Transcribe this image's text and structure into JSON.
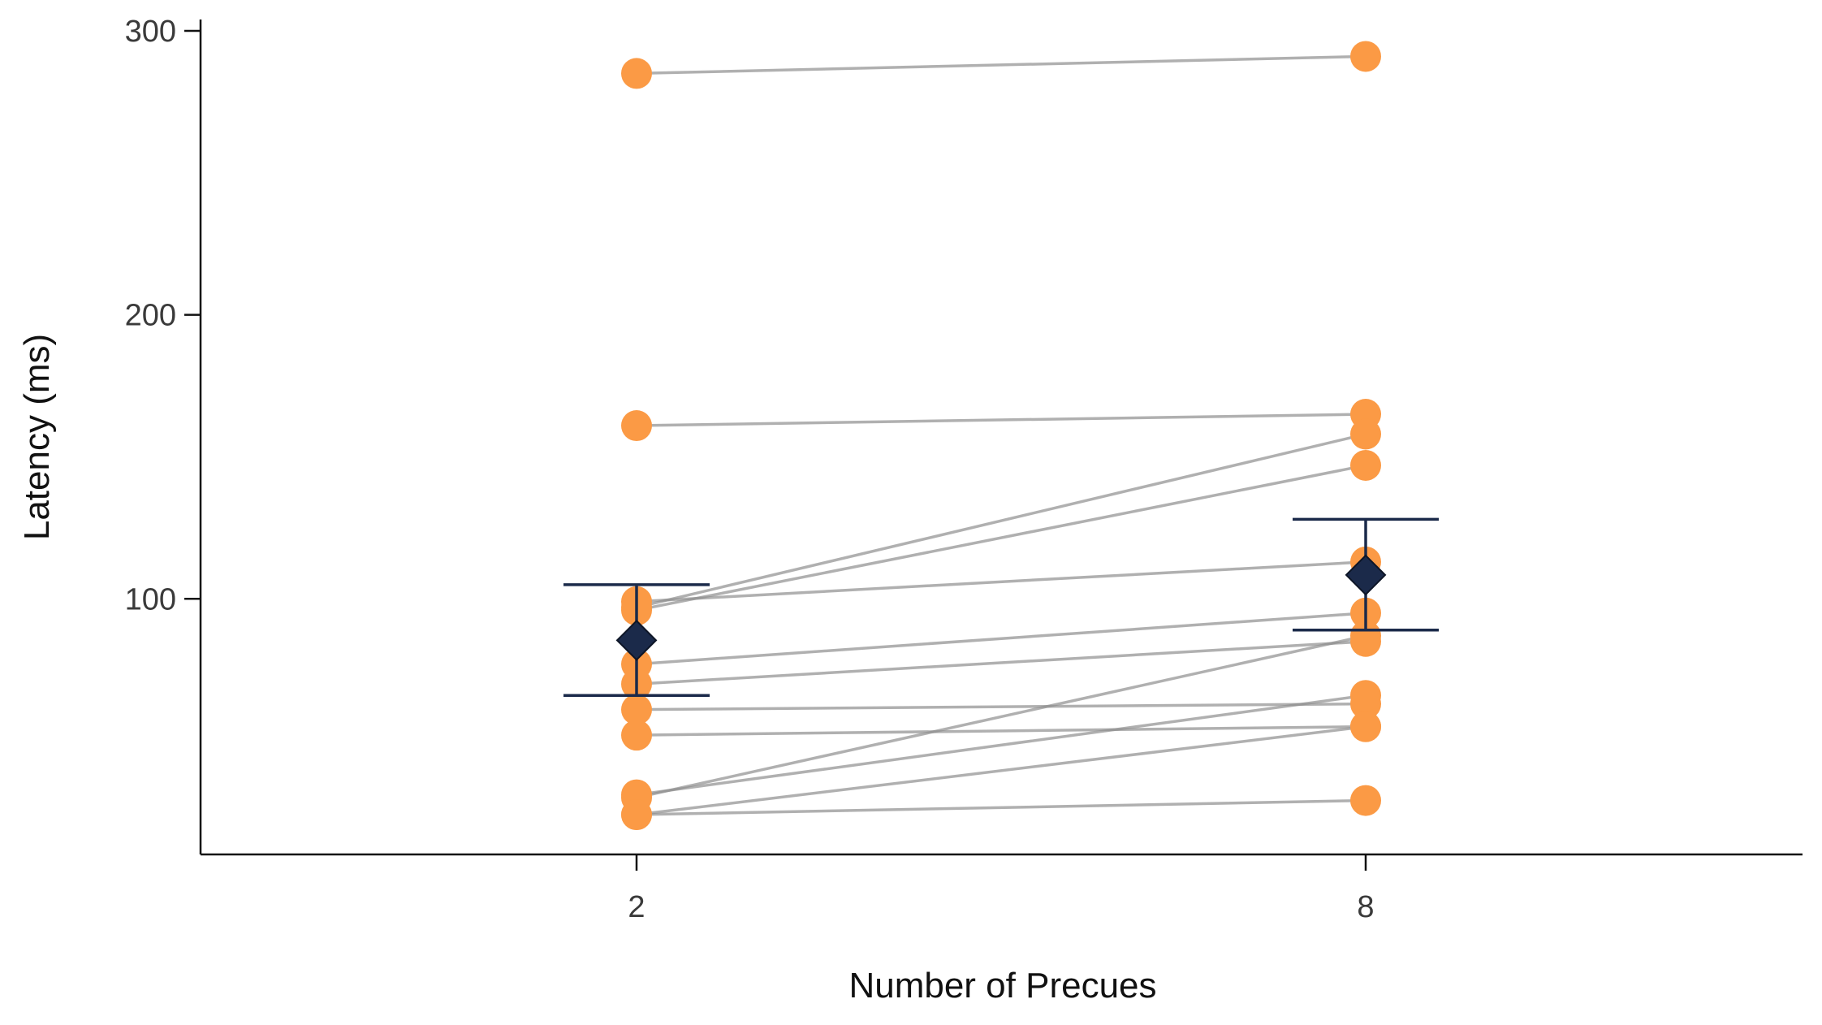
{
  "chart_data": {
    "type": "scatter",
    "xlabel": "Number of Precues",
    "ylabel": "Latency (ms)",
    "categories": [
      "2",
      "8"
    ],
    "ylim": [
      10,
      304
    ],
    "yticks": [
      100,
      200,
      300
    ],
    "grid": false,
    "legend": "none",
    "subjects": [
      {
        "values": [
          285,
          291
        ]
      },
      {
        "values": [
          161,
          165
        ]
      },
      {
        "values": [
          97,
          158
        ]
      },
      {
        "values": [
          96,
          147
        ]
      },
      {
        "values": [
          99,
          113
        ]
      },
      {
        "values": [
          77,
          95
        ]
      },
      {
        "values": [
          70,
          85
        ]
      },
      {
        "values": [
          61,
          63
        ]
      },
      {
        "values": [
          52,
          55
        ]
      },
      {
        "values": [
          31,
          66
        ]
      },
      {
        "values": [
          30,
          87
        ]
      },
      {
        "values": [
          24,
          55
        ]
      },
      {
        "values": [
          24,
          29
        ]
      }
    ],
    "means": [
      85.4,
      108.4
    ],
    "error_bars": [
      {
        "lower": 66,
        "upper": 105
      },
      {
        "lower": 89,
        "upper": 128
      }
    ],
    "colors": {
      "points": "#fb9a45",
      "lines": "#8f8f8f",
      "mean": "#1b2a4a",
      "axis": "#111111"
    }
  }
}
